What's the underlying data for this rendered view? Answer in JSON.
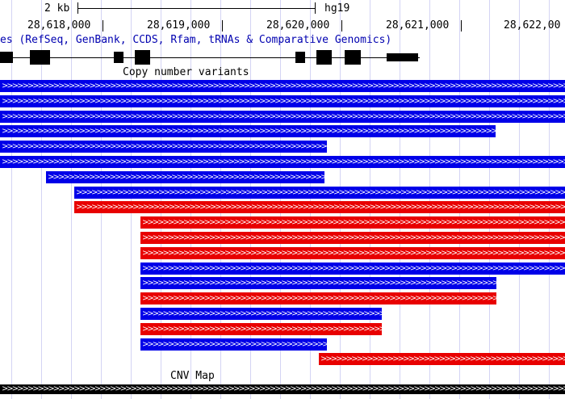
{
  "ruler": {
    "scale_label": "2 kb",
    "assembly": "hg19",
    "positions": [
      "28,618,000",
      "28,619,000",
      "28,620,000",
      "28,621,000",
      "28,622,00"
    ]
  },
  "tracks": {
    "genes_label": "es (RefSeq, GenBank, CCDS, Rfam, tRNAs & Comparative Genomics)",
    "cnv_label": "Copy number variants",
    "cnv_map_label": "CNV Map"
  },
  "colors": {
    "gain": "#0000e8",
    "loss": "#e80000",
    "grid": "#d4d4f4",
    "gene": "#000000"
  },
  "cnv_bars": [
    {
      "color": "blue"
    },
    {
      "color": "blue"
    },
    {
      "color": "blue"
    },
    {
      "color": "blue"
    },
    {
      "color": "blue"
    },
    {
      "color": "blue"
    },
    {
      "color": "blue"
    },
    {
      "color": "blue"
    },
    {
      "color": "red"
    },
    {
      "color": "red"
    },
    {
      "color": "red"
    },
    {
      "color": "red"
    },
    {
      "color": "blue"
    },
    {
      "color": "blue"
    },
    {
      "color": "red"
    },
    {
      "color": "blue"
    },
    {
      "color": "red"
    },
    {
      "color": "blue"
    },
    {
      "color": "red"
    }
  ]
}
